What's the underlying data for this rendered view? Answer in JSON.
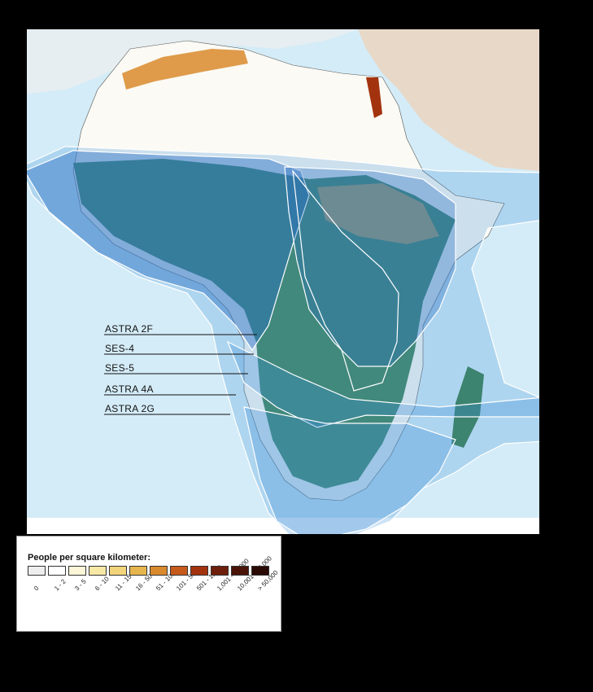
{
  "beams": [
    {
      "id": "astra-2f",
      "label": "ASTRA 2F"
    },
    {
      "id": "ses-4",
      "label": "SES-4"
    },
    {
      "id": "ses-5",
      "label": "SES-5"
    },
    {
      "id": "astra-4a",
      "label": "ASTRA 4A"
    },
    {
      "id": "astra-2g",
      "label": "ASTRA 2G"
    }
  ],
  "legend": {
    "title": "People per square kilometer:",
    "classes": [
      {
        "label": "0",
        "color": "#eeeeee"
      },
      {
        "label": "1 - 2",
        "color": "#ffffff"
      },
      {
        "label": "3 - 5",
        "color": "#fdf6d8"
      },
      {
        "label": "6 - 10",
        "color": "#f8e8a6"
      },
      {
        "label": "11 - 15",
        "color": "#f2d57a"
      },
      {
        "label": "16 - 50",
        "color": "#e7b54d"
      },
      {
        "label": "51 - 100",
        "color": "#d98a2c"
      },
      {
        "label": "101 - 500",
        "color": "#c65a1b"
      },
      {
        "label": "501 - 1,000",
        "color": "#a3330f"
      },
      {
        "label": "1,001 - 10,000",
        "color": "#6e1f0b"
      },
      {
        "label": "10,001 - 50,000",
        "color": "#4a1409"
      },
      {
        "label": "> 50,000",
        "color": "#2a0a05"
      }
    ]
  },
  "colors": {
    "ocean": "#d4ecf7",
    "beam_fill": "#3d8fd6",
    "beam_stroke": "#ffffff",
    "vegetation": "#1f5a3a",
    "desert": "#fbfaf4",
    "middle_east": "#e8d8c8"
  }
}
